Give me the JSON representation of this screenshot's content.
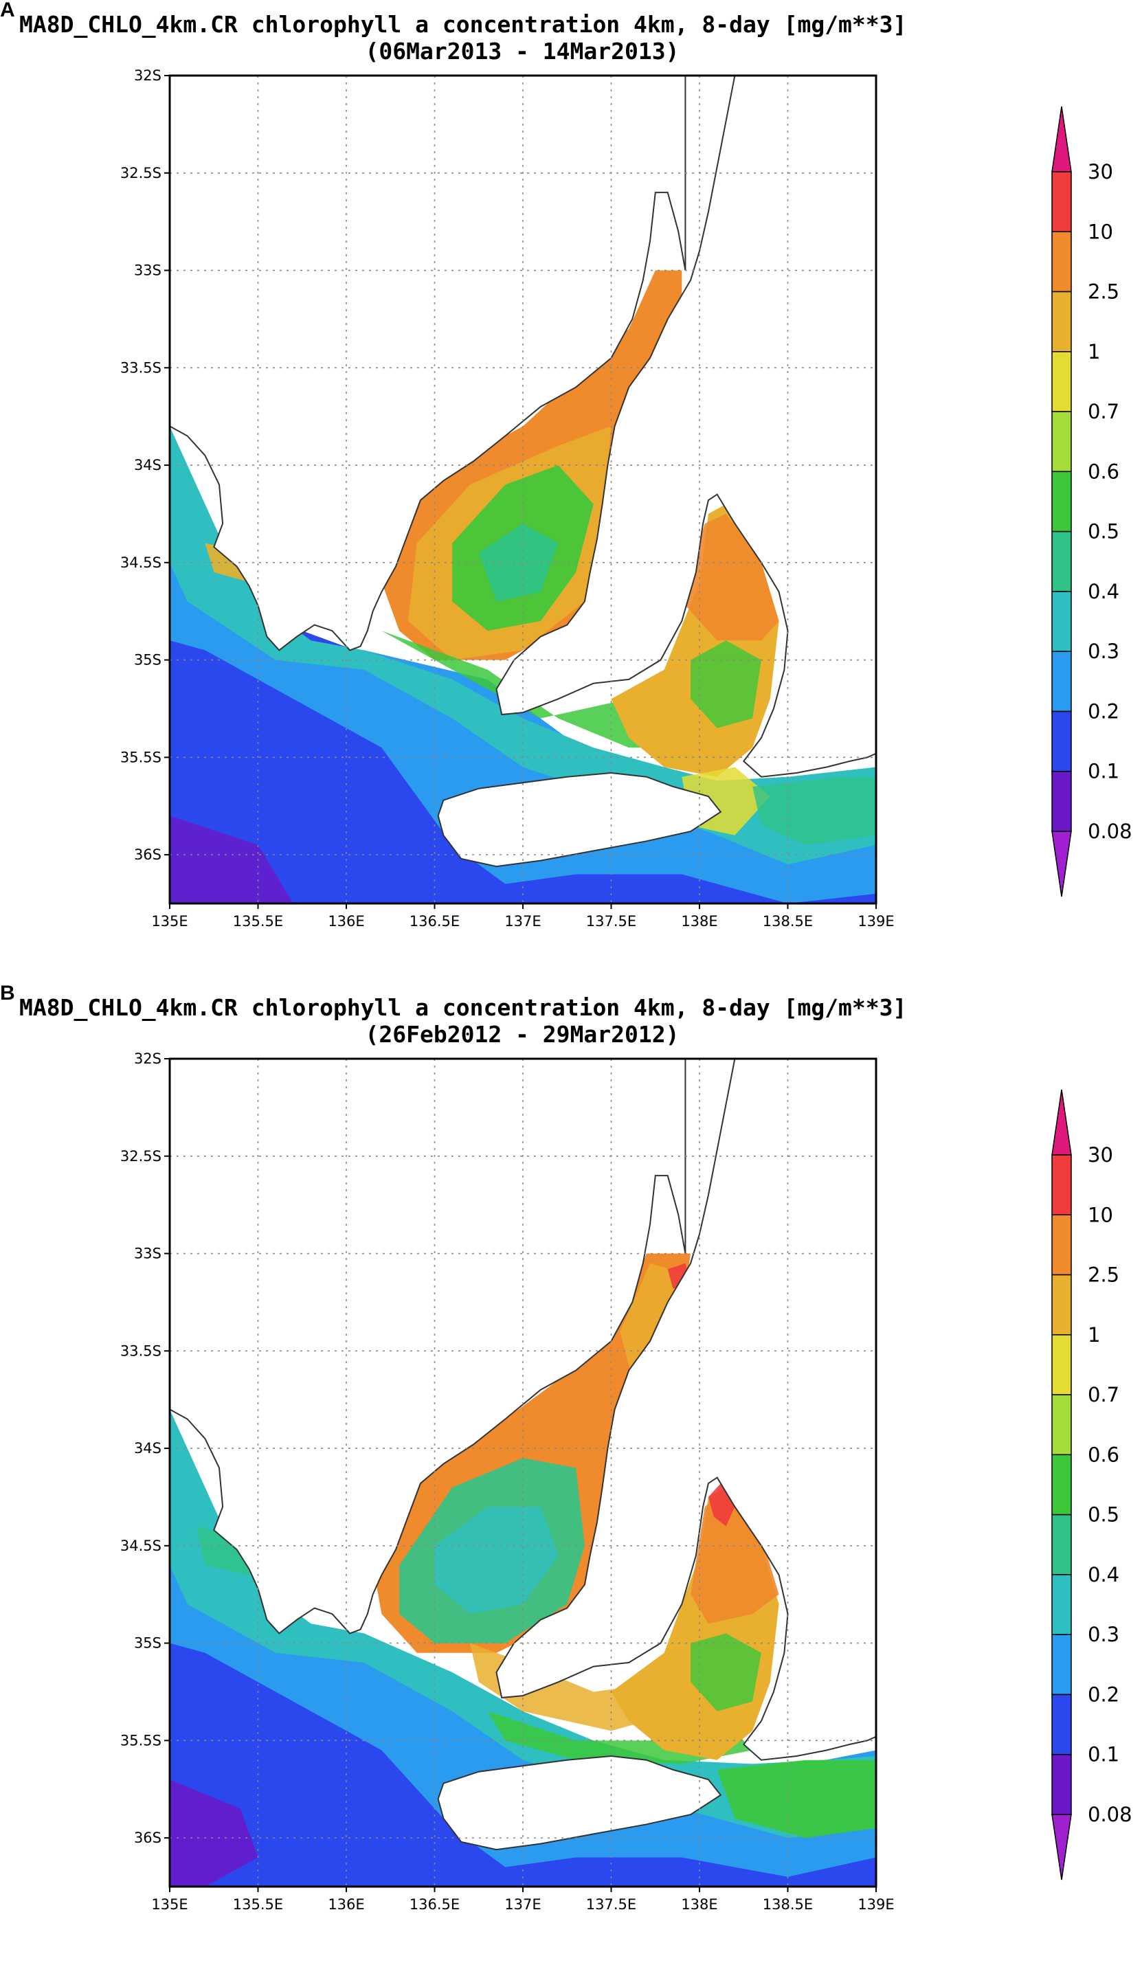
{
  "panels": [
    {
      "id": "A",
      "label": "A",
      "title_line1": "MA8D_CHLO_4km.CR chlorophyll a concentration 4km, 8-day [mg/m**3]",
      "title_line2": "(06Mar2013 - 14Mar2013)"
    },
    {
      "id": "B",
      "label": "B",
      "title_line1": "MA8D_CHLO_4km.CR chlorophyll a concentration 4km, 8-day [mg/m**3]",
      "title_line2": "(26Feb2012 - 29Mar2012)"
    }
  ],
  "lat_ticks": [
    "32S",
    "32.5S",
    "33S",
    "33.5S",
    "34S",
    "34.5S",
    "35S",
    "35.5S",
    "36S"
  ],
  "lon_ticks": [
    "135E",
    "135.5E",
    "136E",
    "136.5E",
    "137E",
    "137.5E",
    "138E",
    "138.5E",
    "139E"
  ],
  "colorbar": {
    "labels": [
      "30",
      "10",
      "2.5",
      "1",
      "0.7",
      "0.6",
      "0.5",
      "0.4",
      "0.3",
      "0.2",
      "0.1",
      "0.08"
    ],
    "colors": [
      "#e0177c",
      "#f03c3c",
      "#ef8a2d",
      "#e8b02e",
      "#e4dc34",
      "#a6dc3a",
      "#3cc83a",
      "#2fc38a",
      "#2fbfc0",
      "#2b9bf0",
      "#2b48ee",
      "#6a18c8",
      "#a020d2"
    ]
  }
}
